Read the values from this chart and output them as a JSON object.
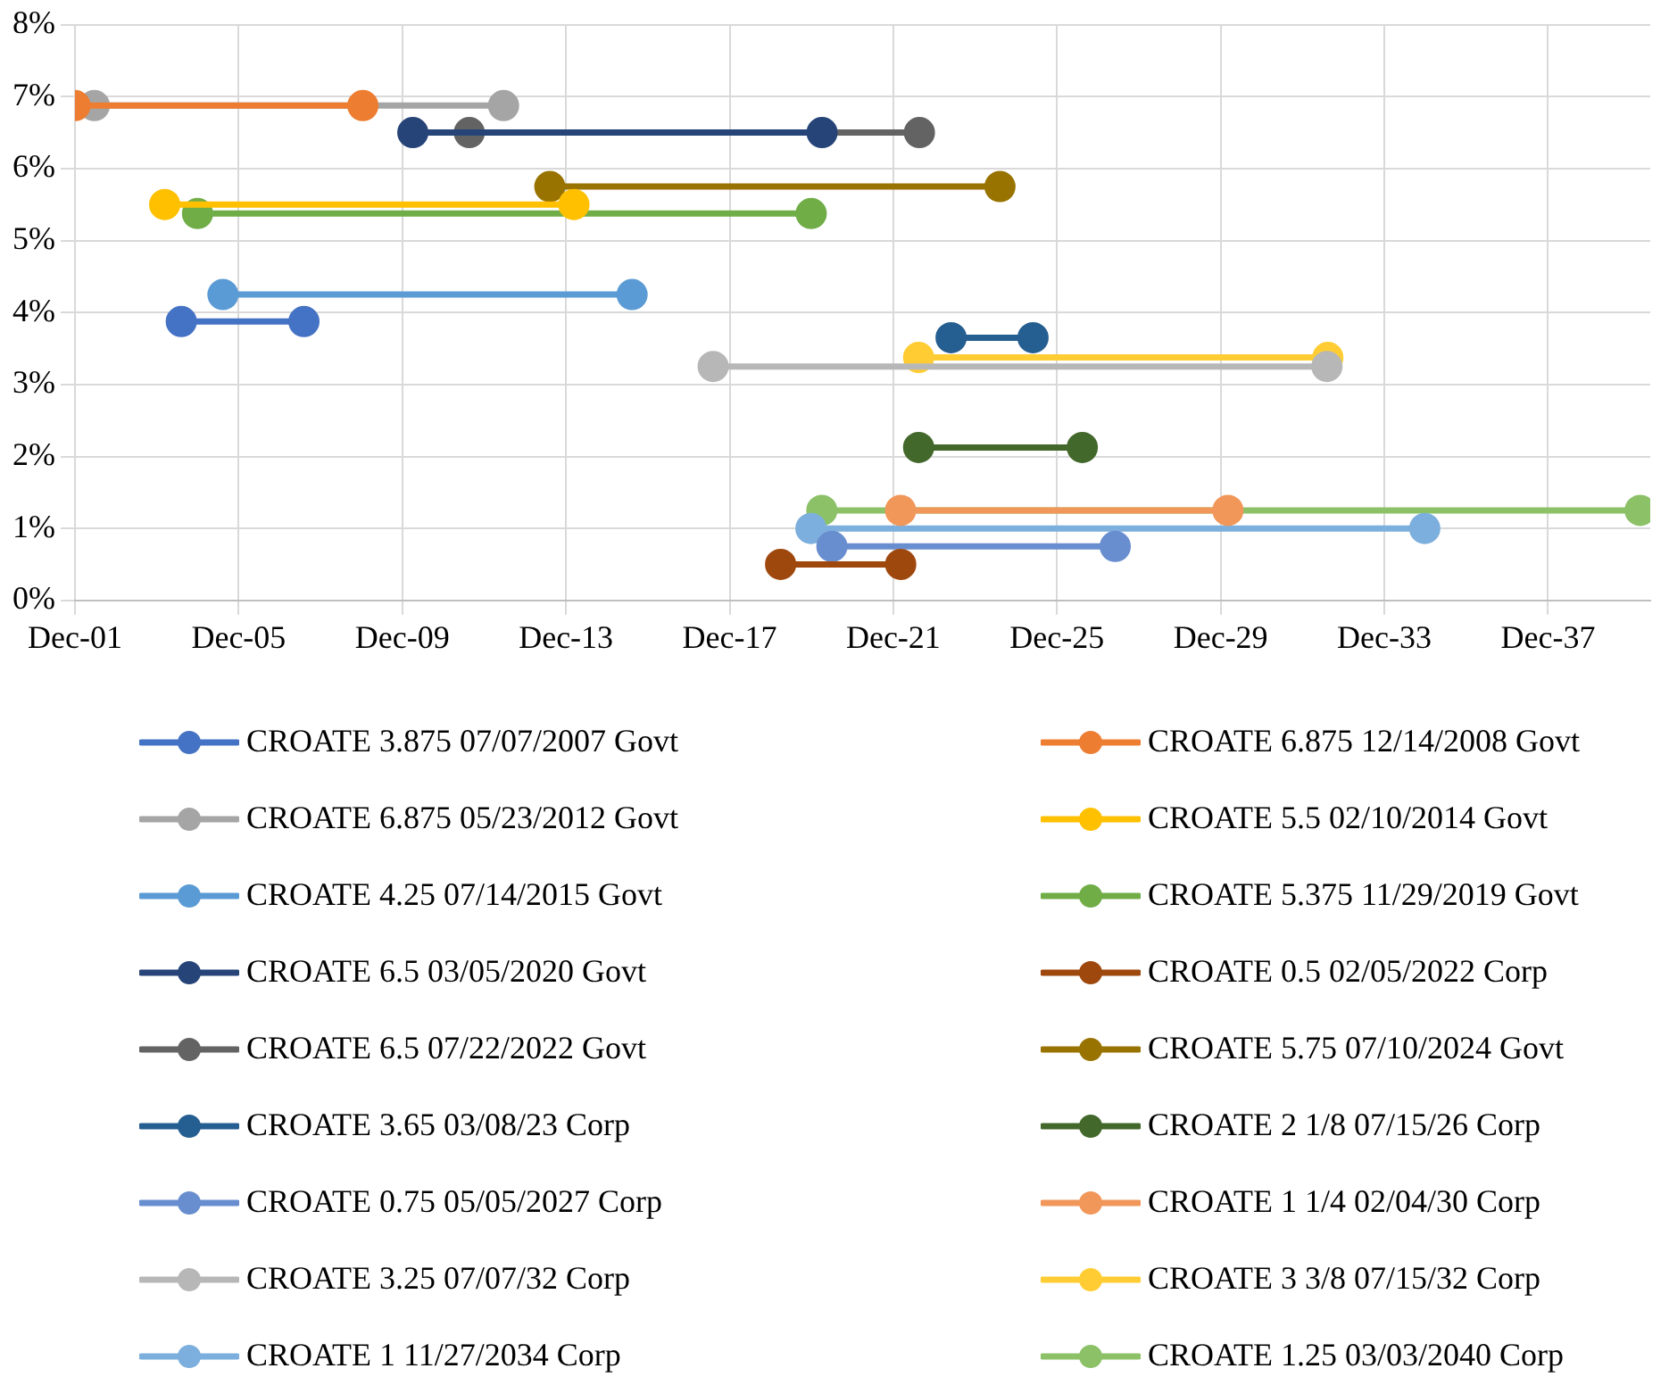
{
  "chart_data": {
    "type": "line",
    "legend": "bottom",
    "grid": true,
    "marker": "circle",
    "line_style": "solid",
    "xlim": [
      "2001-12-01",
      "2040-06-01"
    ],
    "xticks": [
      {
        "value": "2001-12-01",
        "label": "Dec-01"
      },
      {
        "value": "2005-12-01",
        "label": "Dec-05"
      },
      {
        "value": "2009-12-01",
        "label": "Dec-09"
      },
      {
        "value": "2013-12-01",
        "label": "Dec-13"
      },
      {
        "value": "2017-12-01",
        "label": "Dec-17"
      },
      {
        "value": "2021-12-01",
        "label": "Dec-21"
      },
      {
        "value": "2025-12-01",
        "label": "Dec-25"
      },
      {
        "value": "2029-12-01",
        "label": "Dec-29"
      },
      {
        "value": "2033-12-01",
        "label": "Dec-33"
      },
      {
        "value": "2037-12-01",
        "label": "Dec-37"
      }
    ],
    "ylim": [
      0,
      8
    ],
    "yticks": [
      {
        "value": 0,
        "label": "0%"
      },
      {
        "value": 1,
        "label": "1%"
      },
      {
        "value": 2,
        "label": "2%"
      },
      {
        "value": 3,
        "label": "3%"
      },
      {
        "value": 4,
        "label": "4%"
      },
      {
        "value": 5,
        "label": "5%"
      },
      {
        "value": 6,
        "label": "6%"
      },
      {
        "value": 7,
        "label": "7%"
      },
      {
        "value": 8,
        "label": "8%"
      }
    ],
    "series": [
      {
        "name": "CROATE 3.875 07/07/2007 Govt",
        "color": "#4472c4",
        "x": [
          "2004-07-07",
          "2007-07-07"
        ],
        "values": [
          3.875,
          3.875
        ]
      },
      {
        "name": "CROATE 6.875 12/14/2008 Govt",
        "color": "#ed7d31",
        "x": [
          "2001-12-01",
          "2008-12-14"
        ],
        "values": [
          6.875,
          6.875
        ]
      },
      {
        "name": "CROATE 6.875 05/23/2012 Govt",
        "color": "#a5a5a5",
        "x": [
          "2002-05-23",
          "2012-05-23"
        ],
        "values": [
          6.875,
          6.875
        ]
      },
      {
        "name": "CROATE 5.5 02/10/2014 Govt",
        "color": "#ffc000",
        "x": [
          "2004-02-10",
          "2014-02-10"
        ],
        "values": [
          5.5,
          5.5
        ]
      },
      {
        "name": "CROATE 4.25 07/14/2015 Govt",
        "color": "#5b9bd5",
        "x": [
          "2005-07-14",
          "2015-07-14"
        ],
        "values": [
          4.25,
          4.25
        ]
      },
      {
        "name": "CROATE 5.375 11/29/2019 Govt",
        "color": "#70ad47",
        "x": [
          "2004-11-29",
          "2019-11-29"
        ],
        "values": [
          5.375,
          5.375
        ]
      },
      {
        "name": "CROATE 6.5 03/05/2020 Govt",
        "color": "#264478",
        "x": [
          "2010-03-05",
          "2020-03-05"
        ],
        "values": [
          6.5,
          6.5
        ]
      },
      {
        "name": "CROATE 0.5 02/05/2022 Corp",
        "color": "#9e480e",
        "x": [
          "2019-03-01",
          "2022-02-05"
        ],
        "values": [
          0.5,
          0.5
        ]
      },
      {
        "name": "CROATE 6.5 07/22/2022 Govt",
        "color": "#636363",
        "x": [
          "2011-07-22",
          "2022-07-22"
        ],
        "values": [
          6.5,
          6.5
        ]
      },
      {
        "name": "CROATE 5.75 07/10/2024 Govt",
        "color": "#997300",
        "x": [
          "2013-07-10",
          "2024-07-10"
        ],
        "values": [
          5.75,
          5.75
        ]
      },
      {
        "name": "CROATE 3.65 03/08/23 Corp",
        "color": "#255e91",
        "x": [
          "2023-05-01",
          "2025-05-01"
        ],
        "values": [
          3.65,
          3.65
        ]
      },
      {
        "name": "CROATE 2 1/8 07/15/26 Corp",
        "color": "#43682b",
        "x": [
          "2022-07-15",
          "2026-07-15"
        ],
        "values": [
          2.125,
          2.125
        ]
      },
      {
        "name": "CROATE 0.75 05/05/2027 Corp",
        "color": "#698ed0",
        "x": [
          "2020-06-01",
          "2027-05-05"
        ],
        "values": [
          0.75,
          0.75
        ]
      },
      {
        "name": "CROATE 1 1/4 02/04/30 Corp",
        "color": "#f1975a",
        "x": [
          "2022-02-04",
          "2030-02-04"
        ],
        "values": [
          1.25,
          1.25
        ]
      },
      {
        "name": "CROATE 3.25 07/07/32 Corp",
        "color": "#b7b7b7",
        "x": [
          "2017-07-07",
          "2032-07-07"
        ],
        "values": [
          3.25,
          3.25
        ]
      },
      {
        "name": "CROATE 3 3/8 07/15/32 Corp",
        "color": "#ffcd33",
        "x": [
          "2022-07-15",
          "2032-07-15"
        ],
        "values": [
          3.375,
          3.375
        ]
      },
      {
        "name": "CROATE 1 11/27/2034 Corp",
        "color": "#7cafdd",
        "x": [
          "2019-11-27",
          "2034-11-27"
        ],
        "values": [
          1,
          1
        ]
      },
      {
        "name": "CROATE 1.25 03/03/2040 Corp",
        "color": "#8cc168",
        "x": [
          "2020-03-03",
          "2040-03-03"
        ],
        "values": [
          1.25,
          1.25
        ]
      }
    ]
  }
}
